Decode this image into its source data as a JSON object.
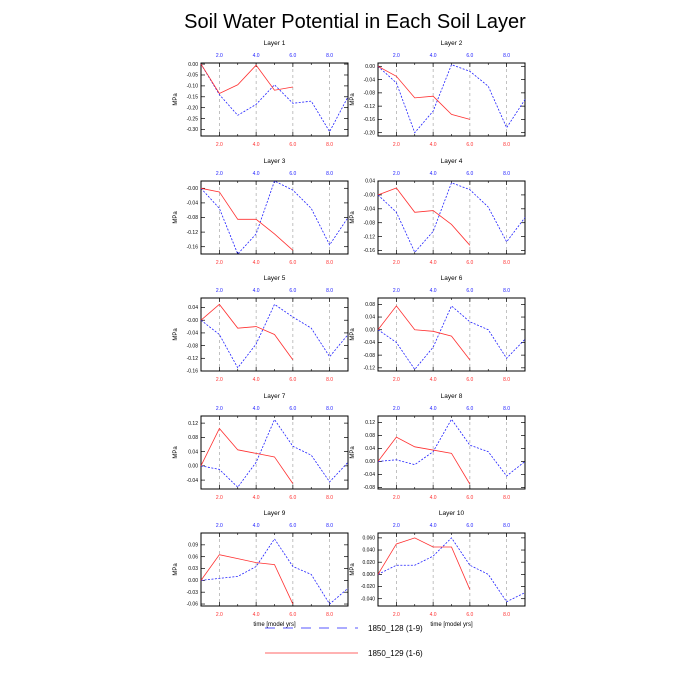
{
  "title": "Soil Water Potential in Each Soil Layer",
  "xlabel": "time [model yrs]",
  "colors": {
    "run128": "#2020ff",
    "run129": "#ff3030",
    "guide": "#999999",
    "axis": "#000000"
  },
  "legend": [
    {
      "label": "1850_128 (1-9)",
      "color": "#2020ff",
      "style": "dashed"
    },
    {
      "label": "1850_129 (1-6)",
      "color": "#ff3030",
      "style": "solid"
    }
  ],
  "chart_data": {
    "type": "line",
    "x_axis": {
      "range": [
        1,
        9
      ],
      "ticks": [
        2,
        4,
        6,
        8
      ],
      "tick_labels": [
        "2.0",
        "4.0",
        "6.0",
        "8.0"
      ]
    },
    "series_names": [
      "1850_128 (1-9)",
      "1850_129 (1-6)"
    ],
    "panels": [
      {
        "title": "Layer 1",
        "ylabel": "MPa",
        "ylim": [
          -0.33,
          0.005
        ],
        "yticks": [
          0.0,
          -0.05,
          -0.1,
          -0.15,
          -0.2,
          -0.25,
          -0.3
        ],
        "ytick_labels": [
          "0.00",
          "-0.05",
          "-0.10",
          "-0.15",
          "-0.20",
          "-0.25",
          "-0.30"
        ],
        "series": [
          {
            "name": "1850_128 (1-9)",
            "x": [
              1,
              2,
              3,
              4,
              5,
              6,
              7,
              8,
              9
            ],
            "values": [
              0.0,
              -0.14,
              -0.235,
              -0.185,
              -0.095,
              -0.18,
              -0.17,
              -0.31,
              -0.15
            ]
          },
          {
            "name": "1850_129 (1-6)",
            "x": [
              1,
              2,
              3,
              4,
              5,
              6
            ],
            "values": [
              0.0,
              -0.135,
              -0.095,
              -0.005,
              -0.12,
              -0.105
            ]
          }
        ]
      },
      {
        "title": "Layer 2",
        "ylabel": "MPa",
        "ylim": [
          -0.21,
          0.01
        ],
        "yticks": [
          0.0,
          -0.04,
          -0.08,
          -0.12,
          -0.16,
          -0.2
        ],
        "ytick_labels": [
          "0.00",
          "-0.04",
          "-0.08",
          "-0.12",
          "-0.16",
          "-0.20"
        ],
        "series": [
          {
            "name": "1850_128 (1-9)",
            "x": [
              1,
              2,
              3,
              4,
              5,
              6,
              7,
              8,
              9
            ],
            "values": [
              0.0,
              -0.05,
              -0.2,
              -0.135,
              0.005,
              -0.015,
              -0.06,
              -0.185,
              -0.1
            ]
          },
          {
            "name": "1850_129 (1-6)",
            "x": [
              1,
              2,
              3,
              4,
              5,
              6
            ],
            "values": [
              0.0,
              -0.03,
              -0.095,
              -0.09,
              -0.145,
              -0.16
            ]
          }
        ]
      },
      {
        "title": "Layer 3",
        "ylabel": "MPa",
        "ylim": [
          -0.18,
          0.02
        ],
        "yticks": [
          0.0,
          -0.04,
          -0.08,
          -0.12,
          -0.16
        ],
        "ytick_labels": [
          "-0.00",
          "-0.04",
          "-0.08",
          "-0.12",
          "-0.16"
        ],
        "series": [
          {
            "name": "1850_128 (1-9)",
            "x": [
              1,
              2,
              3,
              4,
              5,
              6,
              7,
              8,
              9
            ],
            "values": [
              0.0,
              -0.055,
              -0.18,
              -0.125,
              0.02,
              -0.005,
              -0.055,
              -0.155,
              -0.08
            ]
          },
          {
            "name": "1850_129 (1-6)",
            "x": [
              1,
              2,
              3,
              4,
              5,
              6
            ],
            "values": [
              0.0,
              -0.01,
              -0.085,
              -0.085,
              -0.125,
              -0.17
            ]
          }
        ]
      },
      {
        "title": "Layer 4",
        "ylabel": "MPa",
        "ylim": [
          -0.17,
          0.04
        ],
        "yticks": [
          0.04,
          0.0,
          -0.04,
          -0.08,
          -0.12,
          -0.16
        ],
        "ytick_labels": [
          "0.04",
          "-0.00",
          "-0.04",
          "-0.08",
          "-0.12",
          "-0.16"
        ],
        "series": [
          {
            "name": "1850_128 (1-9)",
            "x": [
              1,
              2,
              3,
              4,
              5,
              6,
              7,
              8,
              9
            ],
            "values": [
              0.0,
              -0.05,
              -0.165,
              -0.105,
              0.035,
              0.015,
              -0.035,
              -0.135,
              -0.065
            ]
          },
          {
            "name": "1850_129 (1-6)",
            "x": [
              1,
              2,
              3,
              4,
              5,
              6
            ],
            "values": [
              0.0,
              0.02,
              -0.05,
              -0.045,
              -0.085,
              -0.145
            ]
          }
        ]
      },
      {
        "title": "Layer 5",
        "ylabel": "MPa",
        "ylim": [
          -0.16,
          0.07
        ],
        "yticks": [
          0.04,
          0.0,
          -0.04,
          -0.08,
          -0.12,
          -0.16
        ],
        "ytick_labels": [
          "0.04",
          "-0.00",
          "-0.04",
          "-0.08",
          "-0.12",
          "-0.16"
        ],
        "series": [
          {
            "name": "1850_128 (1-9)",
            "x": [
              1,
              2,
              3,
              4,
              5,
              6,
              7,
              8,
              9
            ],
            "values": [
              0.0,
              -0.045,
              -0.15,
              -0.075,
              0.05,
              0.01,
              -0.025,
              -0.115,
              -0.045
            ]
          },
          {
            "name": "1850_129 (1-6)",
            "x": [
              1,
              2,
              3,
              4,
              5,
              6
            ],
            "values": [
              0.0,
              0.05,
              -0.025,
              -0.02,
              -0.045,
              -0.125
            ]
          }
        ]
      },
      {
        "title": "Layer 6",
        "ylabel": "MPa",
        "ylim": [
          -0.13,
          0.1
        ],
        "yticks": [
          0.08,
          0.04,
          0.0,
          -0.04,
          -0.08,
          -0.12
        ],
        "ytick_labels": [
          "0.08",
          "0.04",
          "0.00",
          "-0.04",
          "-0.08",
          "-0.12"
        ],
        "series": [
          {
            "name": "1850_128 (1-9)",
            "x": [
              1,
              2,
              3,
              4,
              5,
              6,
              7,
              8,
              9
            ],
            "values": [
              0.0,
              -0.04,
              -0.125,
              -0.055,
              0.075,
              0.025,
              0.0,
              -0.09,
              -0.03
            ]
          },
          {
            "name": "1850_129 (1-6)",
            "x": [
              1,
              2,
              3,
              4,
              5,
              6
            ],
            "values": [
              0.0,
              0.075,
              0.0,
              -0.005,
              -0.02,
              -0.095
            ]
          }
        ]
      },
      {
        "title": "Layer 7",
        "ylabel": "MPa",
        "ylim": [
          -0.065,
          0.14
        ],
        "yticks": [
          0.12,
          0.08,
          0.04,
          0.0,
          -0.04
        ],
        "ytick_labels": [
          "0.12",
          "0.08",
          "0.04",
          "0.00",
          "-0.04"
        ],
        "series": [
          {
            "name": "1850_128 (1-9)",
            "x": [
              1,
              2,
              3,
              4,
              5,
              6,
              7,
              8,
              9
            ],
            "values": [
              0.0,
              -0.01,
              -0.06,
              0.01,
              0.13,
              0.055,
              0.03,
              -0.045,
              0.01
            ]
          },
          {
            "name": "1850_129 (1-6)",
            "x": [
              1,
              2,
              3,
              4,
              5,
              6
            ],
            "values": [
              0.0,
              0.105,
              0.045,
              0.035,
              0.025,
              -0.05
            ]
          }
        ]
      },
      {
        "title": "Layer 8",
        "ylabel": "MPa",
        "ylim": [
          -0.085,
          0.14
        ],
        "yticks": [
          0.12,
          0.08,
          0.04,
          0.0,
          -0.04,
          -0.08
        ],
        "ytick_labels": [
          "0.12",
          "0.08",
          "0.04",
          "0.00",
          "-0.04",
          "-0.08"
        ],
        "series": [
          {
            "name": "1850_128 (1-9)",
            "x": [
              1,
              2,
              3,
              4,
              5,
              6,
              7,
              8,
              9
            ],
            "values": [
              0.0,
              0.005,
              -0.01,
              0.03,
              0.13,
              0.05,
              0.03,
              -0.045,
              0.0
            ]
          },
          {
            "name": "1850_129 (1-6)",
            "x": [
              1,
              2,
              3,
              4,
              5,
              6
            ],
            "values": [
              0.0,
              0.075,
              0.045,
              0.035,
              0.025,
              -0.07
            ]
          }
        ]
      },
      {
        "title": "Layer 9",
        "ylabel": "MPa",
        "ylim": [
          -0.065,
          0.12
        ],
        "yticks": [
          0.09,
          0.06,
          0.03,
          0.0,
          -0.03,
          -0.06
        ],
        "ytick_labels": [
          "0.09",
          "0.06",
          "0.03",
          "0.00",
          "-0.03",
          "-0.06"
        ],
        "series": [
          {
            "name": "1850_128 (1-9)",
            "x": [
              1,
              2,
              3,
              4,
              5,
              6,
              7,
              8,
              9
            ],
            "values": [
              0.0,
              0.005,
              0.01,
              0.035,
              0.105,
              0.035,
              0.015,
              -0.06,
              -0.02
            ]
          },
          {
            "name": "1850_129 (1-6)",
            "x": [
              1,
              2,
              3,
              4,
              5,
              6
            ],
            "values": [
              0.0,
              0.065,
              0.055,
              0.045,
              0.04,
              -0.06
            ]
          }
        ]
      },
      {
        "title": "Layer 10",
        "ylabel": "MPa",
        "ylim": [
          -0.052,
          0.068
        ],
        "yticks": [
          0.06,
          0.04,
          0.02,
          0.0,
          -0.02,
          -0.04
        ],
        "ytick_labels": [
          "0.060",
          "0.040",
          "0.020",
          "0.000",
          "-0.020",
          "-0.040"
        ],
        "series": [
          {
            "name": "1850_128 (1-9)",
            "x": [
              1,
              2,
              3,
              4,
              5,
              6,
              7,
              8,
              9
            ],
            "values": [
              0.0,
              0.015,
              0.015,
              0.03,
              0.06,
              0.015,
              0.0,
              -0.045,
              -0.03
            ]
          },
          {
            "name": "1850_129 (1-6)",
            "x": [
              1,
              2,
              3,
              4,
              5,
              6
            ],
            "values": [
              0.0,
              0.05,
              0.06,
              0.045,
              0.045,
              -0.025
            ]
          }
        ]
      }
    ]
  }
}
